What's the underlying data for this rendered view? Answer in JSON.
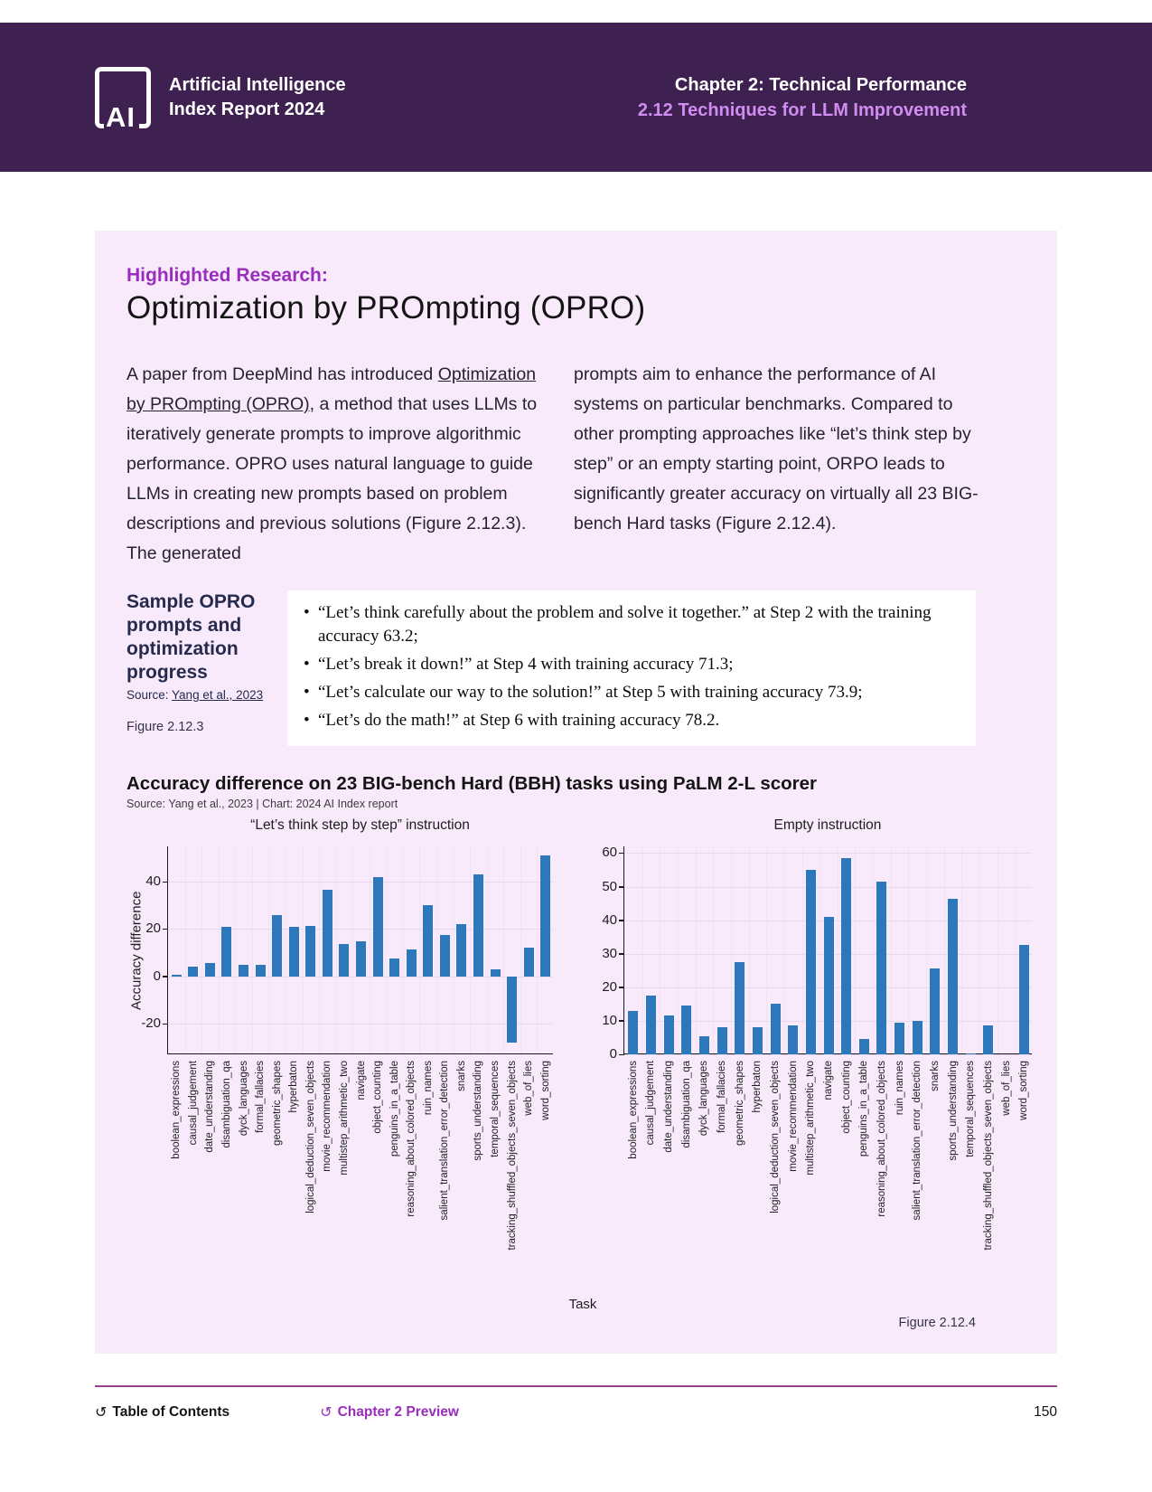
{
  "header": {
    "logo_text": "AI",
    "brand_line1": "Artificial Intelligence",
    "brand_line2": "Index Report 2024",
    "chapter": "Chapter 2: Technical Performance",
    "section": "2.12 Techniques for LLM Improvement"
  },
  "content": {
    "kicker": "Highlighted Research:",
    "title": "Optimization by PROmpting (OPRO)",
    "col1_pre": "A paper from DeepMind has introduced ",
    "col1_link": "Optimization by PROmpting (OPRO)",
    "col1_post": ", a method that uses LLMs to iteratively generate prompts to improve algorithmic performance. OPRO uses natural language to guide LLMs in creating new prompts based on problem descriptions and previous solutions (Figure 2.12.3). The generated",
    "col2": "prompts aim to enhance the performance of AI systems on particular benchmarks. Compared to other prompting approaches like “let’s think step by step” or an empty starting point, ORPO leads to significantly greater accuracy on virtually all 23 BIG-bench Hard tasks (Figure 2.12.4)."
  },
  "figure3": {
    "title": "Sample OPRO prompts and optimization progress",
    "source_prefix": "Source: ",
    "source_link": "Yang et al., 2023",
    "figure_label": "Figure 2.12.3",
    "bullets": [
      "“Let’s think carefully about the problem and solve it together.”  at Step 2 with the training accuracy 63.2;",
      "“Let’s break it down!” at Step 4 with training accuracy 71.3;",
      "“Let’s calculate our way to the solution!” at Step 5 with training accuracy 73.9;",
      "“Let’s do the math!” at Step 6 with training accuracy 78.2."
    ]
  },
  "chart_data": {
    "type": "bar",
    "title": "Accuracy difference on 23 BIG-bench Hard (BBH) tasks using PaLM 2-L scorer",
    "source": "Source: Yang et al., 2023 | Chart: 2024 AI Index report",
    "xlabel": "Task",
    "ylabel": "Accuracy difference",
    "figure_label": "Figure 2.12.4",
    "bar_color": "#2d78ba",
    "grid": true,
    "legend_position": "none",
    "categories": [
      "boolean_expressions",
      "causal_judgement",
      "date_understanding",
      "disambiguation_qa",
      "dyck_languages",
      "formal_fallacies",
      "geometric_shapes",
      "hyperbaton",
      "logical_deduction_seven_objects",
      "movie_recommendation",
      "multistep_arithmetic_two",
      "navigate",
      "object_counting",
      "penguins_in_a_table",
      "reasoning_about_colored_objects",
      "ruin_names",
      "salient_translation_error_detection",
      "snarks",
      "sports_understanding",
      "temporal_sequences",
      "tracking_shuffled_objects_seven_objects",
      "web_of_lies",
      "word_sorting"
    ],
    "series": [
      {
        "name": "“Let’s think step by step” instruction",
        "values": [
          0.5,
          4,
          5.5,
          21,
          5,
          5,
          26,
          21,
          21.5,
          36.5,
          13.5,
          15,
          42,
          7.5,
          11.5,
          30,
          17.5,
          22,
          43,
          3,
          -28,
          12,
          51
        ],
        "ylim": [
          -33,
          55
        ],
        "yticks": [
          -20,
          0,
          20,
          40
        ]
      },
      {
        "name": "Empty instruction",
        "values": [
          13,
          17.5,
          11.5,
          14.5,
          5.5,
          8,
          27.5,
          8,
          15,
          8.5,
          55,
          41,
          58.5,
          4.5,
          51.5,
          9.5,
          10,
          25.5,
          46.5,
          0.4,
          8.5,
          0,
          32.5
        ],
        "ylim": [
          0,
          62
        ],
        "yticks": [
          0,
          10,
          20,
          30,
          40,
          50,
          60
        ]
      }
    ]
  },
  "footer": {
    "toc_label": "Table of Contents",
    "chapter_preview_label": "Chapter 2 Preview",
    "page_number": "150"
  }
}
